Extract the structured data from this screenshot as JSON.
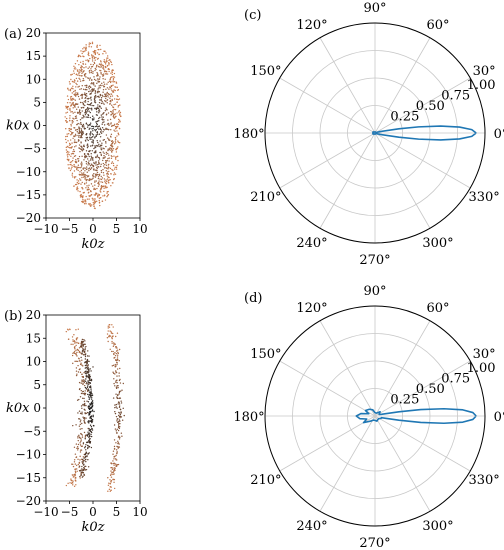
{
  "chart_data": [
    {
      "panel_label": "(a)",
      "type": "scatter",
      "xlabel": "k0z",
      "ylabel": "k0x",
      "xlim": [
        -10,
        10
      ],
      "ylim": [
        -20,
        20
      ],
      "xticks": [
        "−10",
        "−5",
        "0",
        "5",
        "10"
      ],
      "yticks": [
        "20",
        "15",
        "10",
        "5",
        "0",
        "−5",
        "−10",
        "−15",
        "−20"
      ],
      "description_data": {
        "shape": "filled ellipse of points",
        "center": [
          0,
          0
        ],
        "z_half_width": 6,
        "x_half_height": 18,
        "n_points": 1500
      },
      "colors": {
        "inner": "#2b2b2b",
        "outer": "#c8794a"
      }
    },
    {
      "panel_label": "(b)",
      "type": "scatter",
      "xlabel": "k0z",
      "ylabel": "k0x",
      "xlim": [
        -10,
        10
      ],
      "ylim": [
        -20,
        20
      ],
      "xticks": [
        "−10",
        "−5",
        "0",
        "5",
        "10"
      ],
      "yticks": [
        "20",
        "15",
        "10",
        "5",
        "0",
        "−5",
        "−10",
        "−15",
        "−20"
      ],
      "description_data": {
        "shape": "crescent-shaped arcs",
        "arcs": [
          {
            "z_offset": -4.5,
            "bulge": -2.5,
            "x_extent": 17,
            "spread": 0.6,
            "density": 260
          },
          {
            "z_offset": -2.5,
            "bulge": -2.0,
            "x_extent": 15,
            "spread": 0.35,
            "density": 320
          },
          {
            "z_offset": 3.5,
            "bulge": -2.0,
            "x_extent": 18,
            "spread": 0.5,
            "density": 260
          }
        ]
      },
      "colors": {
        "inner": "#1a1a1a",
        "outer": "#c8794a"
      }
    },
    {
      "panel_label": "(c)",
      "type": "polar-line",
      "radial_ticks": [
        "0.25",
        "0.50",
        "0.75",
        "1.00"
      ],
      "angle_ticks": [
        "0°",
        "30°",
        "60°",
        "90°",
        "120°",
        "150°",
        "180°",
        "210°",
        "240°",
        "270°",
        "300°",
        "330°"
      ],
      "rmax": 1.0,
      "series": [
        {
          "theta_deg": [
            0,
            2,
            4,
            6,
            8,
            10,
            15,
            20,
            30,
            60,
            90,
            120,
            150,
            180,
            210,
            240,
            270,
            300,
            330,
            340,
            345,
            350,
            352,
            354,
            356,
            358,
            360
          ],
          "r": [
            0.92,
            0.88,
            0.77,
            0.6,
            0.4,
            0.22,
            0.05,
            0.02,
            0.01,
            0.01,
            0.01,
            0.01,
            0.02,
            0.02,
            0.02,
            0.01,
            0.01,
            0.01,
            0.01,
            0.02,
            0.05,
            0.22,
            0.4,
            0.6,
            0.77,
            0.88,
            0.92
          ]
        }
      ],
      "color": "#1f77b4"
    },
    {
      "panel_label": "(d)",
      "type": "polar-line",
      "radial_ticks": [
        "0.25",
        "0.50",
        "0.75",
        "1.00"
      ],
      "angle_ticks": [
        "0°",
        "30°",
        "60°",
        "90°",
        "120°",
        "150°",
        "180°",
        "210°",
        "240°",
        "270°",
        "300°",
        "330°"
      ],
      "rmax": 1.0,
      "series": [
        {
          "theta_deg": [
            0,
            2,
            4,
            6,
            8,
            10,
            15,
            20,
            40,
            60,
            90,
            110,
            130,
            150,
            160,
            170,
            180,
            190,
            200,
            210,
            230,
            250,
            270,
            290,
            320,
            340,
            345,
            350,
            352,
            354,
            356,
            358,
            360
          ],
          "r": [
            0.92,
            0.89,
            0.8,
            0.63,
            0.42,
            0.22,
            0.06,
            0.04,
            0.06,
            0.03,
            0.03,
            0.06,
            0.08,
            0.1,
            0.06,
            0.13,
            0.17,
            0.14,
            0.08,
            0.12,
            0.06,
            0.04,
            0.04,
            0.05,
            0.04,
            0.06,
            0.06,
            0.22,
            0.42,
            0.63,
            0.8,
            0.89,
            0.92
          ]
        }
      ],
      "color": "#1f77b4"
    }
  ]
}
